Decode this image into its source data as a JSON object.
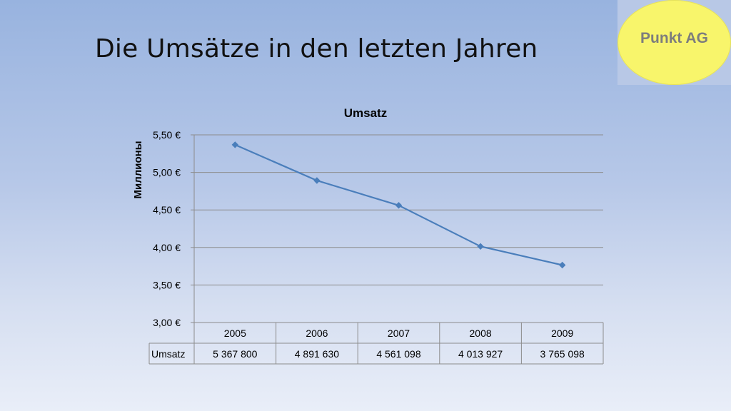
{
  "slide": {
    "title": "Die Umsätze in den letzten Jahren",
    "logo_text": "Punkt AG"
  },
  "colors": {
    "series_line": "#4a7ebb",
    "gridline": "#8c8c8c",
    "logo_fill": "#f8f56b",
    "logo_text": "#7d7d7d"
  },
  "chart_data": {
    "type": "line",
    "title": "Umsatz",
    "xlabel": "",
    "ylabel": "Миллионы",
    "ylim": [
      3.0,
      5.5
    ],
    "yticks": [
      3.0,
      3.5,
      4.0,
      4.5,
      5.0,
      5.5
    ],
    "ytick_labels": [
      "3,00 €",
      "3,50 €",
      "4,00 €",
      "4,50 €",
      "5,00 €",
      "5,50 €"
    ],
    "categories": [
      "2005",
      "2006",
      "2007",
      "2008",
      "2009"
    ],
    "series": [
      {
        "name": "Umsatz",
        "values": [
          5.3678,
          4.89163,
          4.561098,
          4.013927,
          3.765098
        ],
        "value_labels": [
          "5 367 800",
          "4 891 630",
          "4 561 098",
          "4 013 927",
          "3 765 098"
        ]
      }
    ],
    "grid": true,
    "legend": "none",
    "data_table": true
  }
}
